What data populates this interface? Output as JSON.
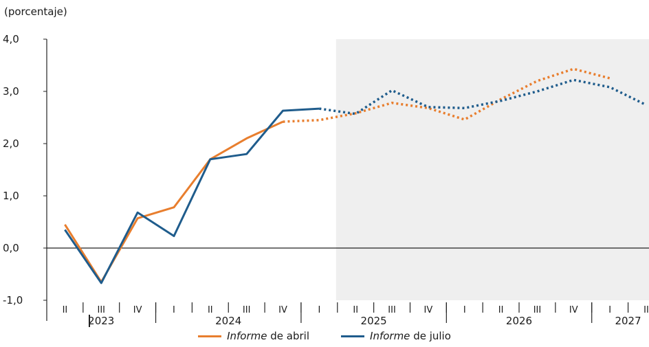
{
  "chart_data": {
    "type": "line",
    "unit_label": "(porcentaje)",
    "ylim": [
      -1.0,
      4.0
    ],
    "yticks": [
      "4,0",
      "3,0",
      "2,0",
      "1,0",
      "0,0",
      "-1,0"
    ],
    "ytick_values": [
      4,
      3,
      2,
      1,
      0,
      -1
    ],
    "quarters": [
      "II",
      "III",
      "IV",
      "I",
      "II",
      "III",
      "IV",
      "I",
      "II",
      "III",
      "IV",
      "I",
      "II",
      "III",
      "IV",
      "I",
      "II"
    ],
    "years": [
      {
        "label": "2023",
        "start": 0,
        "end": 2
      },
      {
        "label": "2024",
        "start": 3,
        "end": 6
      },
      {
        "label": "2025",
        "start": 7,
        "end": 10
      },
      {
        "label": "2026",
        "start": 11,
        "end": 14
      },
      {
        "label": "2027",
        "start": 15,
        "end": 16
      }
    ],
    "projection_start_index": 7.5,
    "series": [
      {
        "name_italic": "Informe",
        "name_rest": " de abril",
        "color": "#e87e2e",
        "values": [
          0.45,
          -0.65,
          0.57,
          0.78,
          1.7,
          2.1,
          2.42,
          2.45,
          2.58,
          2.78,
          2.68,
          2.46,
          2.85,
          3.2,
          3.43,
          3.25,
          null
        ],
        "solid_until": 6
      },
      {
        "name_italic": "Informe",
        "name_rest": " de julio",
        "color": "#1f5c8c",
        "values": [
          0.35,
          -0.67,
          0.68,
          0.23,
          1.7,
          1.8,
          2.63,
          2.67,
          2.57,
          3.02,
          2.7,
          2.68,
          2.82,
          3.0,
          3.22,
          3.08,
          2.74
        ],
        "solid_until": 7
      }
    ]
  }
}
